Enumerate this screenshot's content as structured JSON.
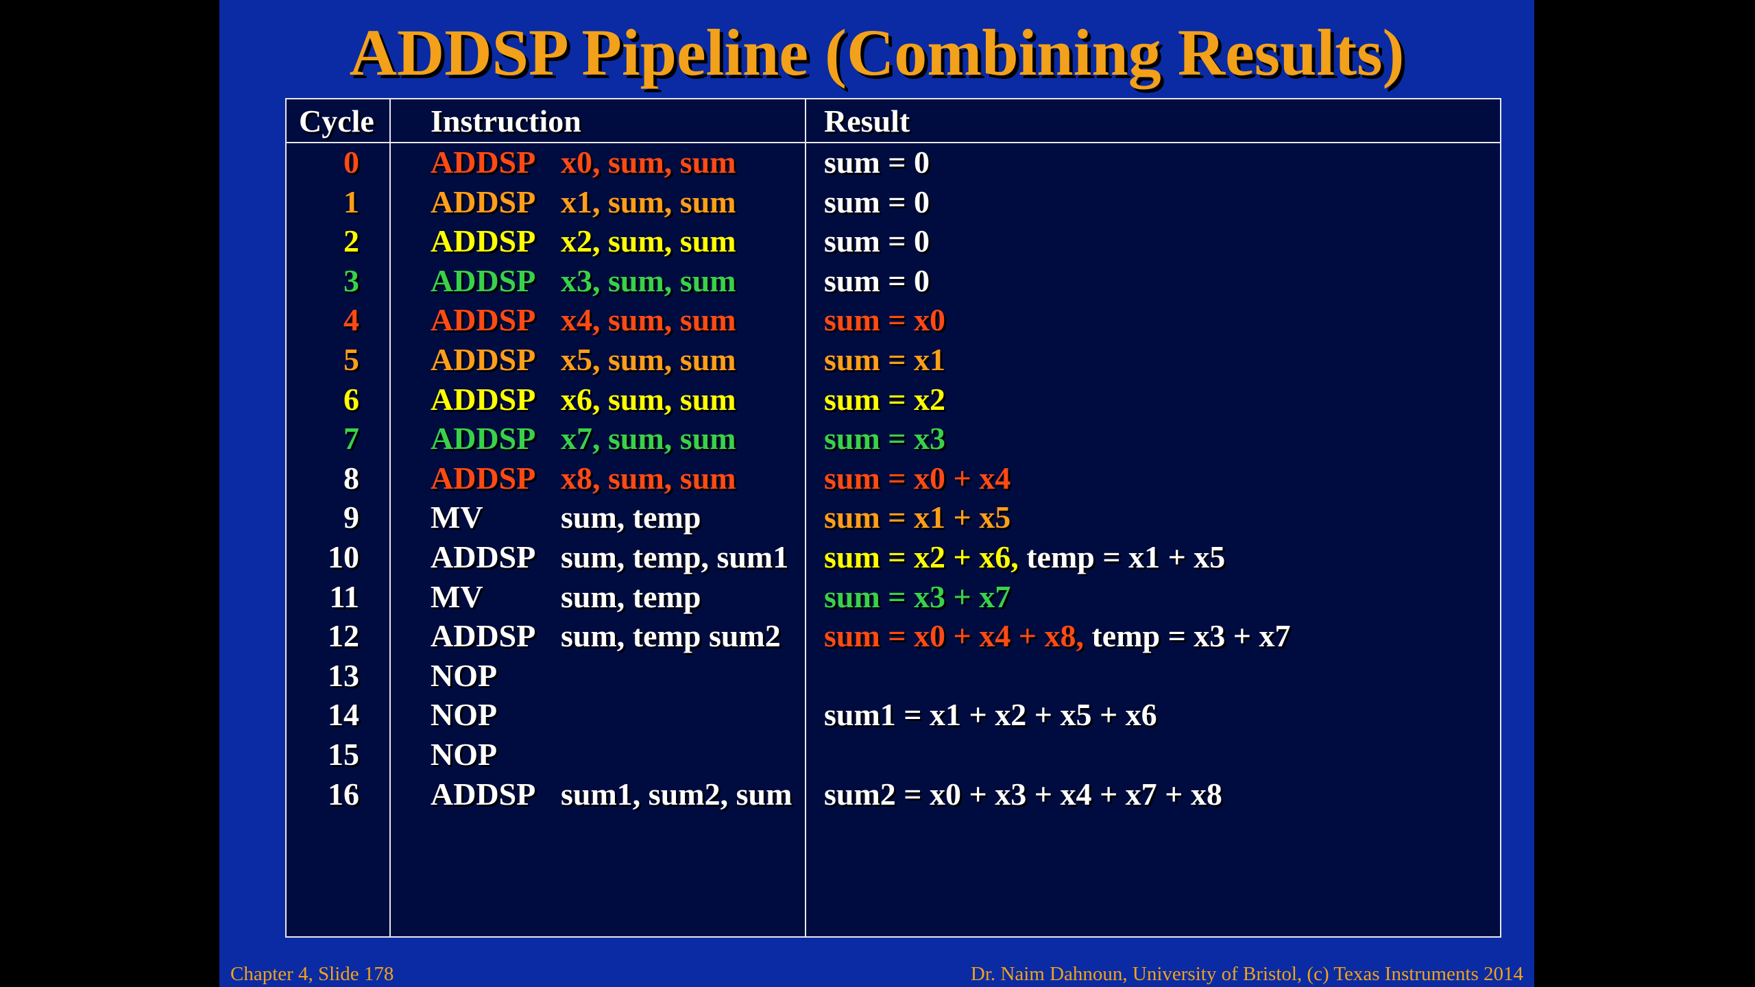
{
  "title": "ADDSP Pipeline (Combining Results)",
  "colors": {
    "red": "#ff4a14",
    "orange": "#ff9e1a",
    "yellow": "#ffff00",
    "green": "#3ad14a",
    "white": "#ffffff"
  },
  "headers": {
    "cycle": "Cycle",
    "instruction": "Instruction",
    "result": "Result"
  },
  "rows": [
    {
      "cycle": "0",
      "op": "ADDSP",
      "args": "x0, sum, sum",
      "color": "red",
      "result": [
        {
          "text": "sum = 0",
          "color": "white"
        }
      ]
    },
    {
      "cycle": "1",
      "op": "ADDSP",
      "args": "x1, sum, sum",
      "color": "orange",
      "result": [
        {
          "text": "sum = 0",
          "color": "white"
        }
      ]
    },
    {
      "cycle": "2",
      "op": "ADDSP",
      "args": "x2, sum, sum",
      "color": "yellow",
      "result": [
        {
          "text": "sum = 0",
          "color": "white"
        }
      ]
    },
    {
      "cycle": "3",
      "op": "ADDSP",
      "args": "x3, sum, sum",
      "color": "green",
      "result": [
        {
          "text": "sum = 0",
          "color": "white"
        }
      ]
    },
    {
      "cycle": "4",
      "op": "ADDSP",
      "args": "x4, sum, sum",
      "color": "red",
      "result": [
        {
          "text": "sum = x0",
          "color": "red"
        }
      ]
    },
    {
      "cycle": "5",
      "op": "ADDSP",
      "args": "x5, sum, sum",
      "color": "orange",
      "result": [
        {
          "text": "sum = x1",
          "color": "orange"
        }
      ]
    },
    {
      "cycle": "6",
      "op": "ADDSP",
      "args": "x6, sum, sum",
      "color": "yellow",
      "result": [
        {
          "text": "sum = x2",
          "color": "yellow"
        }
      ]
    },
    {
      "cycle": "7",
      "op": "ADDSP",
      "args": "x7, sum, sum",
      "color": "green",
      "result": [
        {
          "text": "sum = x3",
          "color": "green"
        }
      ]
    },
    {
      "cycle": "8",
      "op": "ADDSP",
      "args": "x8, sum, sum",
      "color": "red",
      "cycle_color": "white",
      "result": [
        {
          "text": "sum = x0 + x4",
          "color": "red"
        }
      ]
    },
    {
      "cycle": "9",
      "op": "MV",
      "args": "sum, temp",
      "color": "white",
      "result": [
        {
          "text": "sum = x1 + x5",
          "color": "orange"
        }
      ]
    },
    {
      "cycle": "10",
      "op": "ADDSP",
      "args": "sum, temp, sum1",
      "color": "white",
      "result": [
        {
          "text": "sum = x2 + x6,",
          "color": "yellow"
        },
        {
          "text": " temp = x1 + x5",
          "color": "white"
        }
      ]
    },
    {
      "cycle": "11",
      "op": "MV",
      "args": "sum, temp",
      "color": "white",
      "result": [
        {
          "text": "sum = x3 + x7",
          "color": "green"
        }
      ]
    },
    {
      "cycle": "12",
      "op": "ADDSP",
      "args": "sum, temp sum2",
      "color": "white",
      "result": [
        {
          "text": "sum = x0 + x4 + x8,",
          "color": "red"
        },
        {
          "text": " temp = x3 + x7",
          "color": "white"
        }
      ]
    },
    {
      "cycle": "13",
      "op": "NOP",
      "args": "",
      "color": "white",
      "result": []
    },
    {
      "cycle": "14",
      "op": "NOP",
      "args": "",
      "color": "white",
      "result": [
        {
          "text": "sum1 = x1 + x2 + x5 + x6",
          "color": "white"
        }
      ]
    },
    {
      "cycle": "15",
      "op": "NOP",
      "args": "",
      "color": "white",
      "result": []
    },
    {
      "cycle": "16",
      "op": "ADDSP",
      "args": "sum1, sum2, sum",
      "color": "white",
      "result": [
        {
          "text": "sum2 = x0 + x3 + x4 + x7 + x8",
          "color": "white"
        }
      ]
    }
  ],
  "footer": {
    "left": "Chapter 4, Slide 178",
    "right": "Dr. Naim Dahnoun, University of Bristol,  (c) Texas Instruments 2014"
  }
}
